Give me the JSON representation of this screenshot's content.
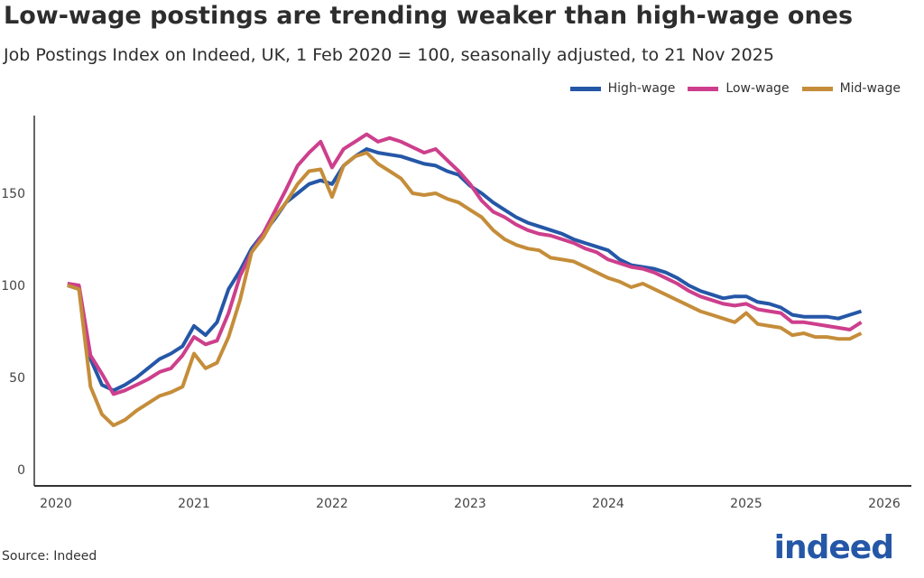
{
  "chart_data": {
    "type": "line",
    "title": "Low-wage postings are trending weaker than high-wage ones",
    "subtitle": "Job Postings Index on Indeed, UK, 1 Feb 2020 = 100, seasonally adjusted, to 21 Nov 2025",
    "xlabel": "",
    "ylabel": "",
    "xlim": [
      "2020-01",
      "2026-01"
    ],
    "ylim": [
      0,
      180
    ],
    "x_ticks": [
      "2020",
      "2021",
      "2022",
      "2023",
      "2024",
      "2025",
      "2026"
    ],
    "y_ticks": [
      "0",
      "50",
      "100",
      "150"
    ],
    "grid": false,
    "legend_position": "top-right",
    "x": [
      "2020-02",
      "2020-03",
      "2020-04",
      "2020-05",
      "2020-06",
      "2020-07",
      "2020-08",
      "2020-09",
      "2020-10",
      "2020-11",
      "2020-12",
      "2021-01",
      "2021-02",
      "2021-03",
      "2021-04",
      "2021-05",
      "2021-06",
      "2021-07",
      "2021-08",
      "2021-09",
      "2021-10",
      "2021-11",
      "2021-12",
      "2022-01",
      "2022-02",
      "2022-03",
      "2022-04",
      "2022-05",
      "2022-06",
      "2022-07",
      "2022-08",
      "2022-09",
      "2022-10",
      "2022-11",
      "2022-12",
      "2023-01",
      "2023-02",
      "2023-03",
      "2023-04",
      "2023-05",
      "2023-06",
      "2023-07",
      "2023-08",
      "2023-09",
      "2023-10",
      "2023-11",
      "2023-12",
      "2024-01",
      "2024-02",
      "2024-03",
      "2024-04",
      "2024-05",
      "2024-06",
      "2024-07",
      "2024-08",
      "2024-09",
      "2024-10",
      "2024-11",
      "2024-12",
      "2025-01",
      "2025-02",
      "2025-03",
      "2025-04",
      "2025-05",
      "2025-06",
      "2025-07",
      "2025-08",
      "2025-09",
      "2025-10",
      "2025-11"
    ],
    "series": [
      {
        "name": "High-wage",
        "color": "#2557a7",
        "values": [
          100,
          98,
          60,
          46,
          43,
          46,
          50,
          55,
          60,
          63,
          67,
          78,
          73,
          80,
          98,
          108,
          120,
          128,
          136,
          145,
          150,
          155,
          157,
          155,
          165,
          170,
          174,
          172,
          171,
          170,
          168,
          166,
          165,
          162,
          160,
          154,
          150,
          145,
          141,
          137,
          134,
          132,
          130,
          128,
          125,
          123,
          121,
          119,
          114,
          111,
          110,
          109,
          107,
          104,
          100,
          97,
          95,
          93,
          94,
          94,
          91,
          90,
          88,
          84,
          83,
          83,
          83,
          82,
          84,
          86
        ]
      },
      {
        "name": "Low-wage",
        "color": "#cd3f8c",
        "values": [
          101,
          100,
          62,
          52,
          41,
          43,
          46,
          49,
          53,
          55,
          62,
          72,
          68,
          70,
          85,
          105,
          118,
          128,
          140,
          152,
          165,
          172,
          178,
          164,
          174,
          178,
          182,
          178,
          180,
          178,
          175,
          172,
          174,
          168,
          162,
          155,
          146,
          140,
          137,
          133,
          130,
          128,
          127,
          125,
          123,
          120,
          118,
          114,
          112,
          110,
          109,
          107,
          104,
          101,
          97,
          94,
          92,
          90,
          89,
          90,
          87,
          86,
          85,
          80,
          80,
          79,
          78,
          77,
          76,
          80
        ]
      },
      {
        "name": "Mid-wage",
        "color": "#c58d3a",
        "values": [
          100,
          98,
          45,
          30,
          24,
          27,
          32,
          36,
          40,
          42,
          45,
          63,
          55,
          58,
          72,
          92,
          118,
          126,
          137,
          145,
          155,
          162,
          163,
          148,
          165,
          170,
          172,
          166,
          162,
          158,
          150,
          149,
          150,
          147,
          145,
          141,
          137,
          130,
          125,
          122,
          120,
          119,
          115,
          114,
          113,
          110,
          107,
          104,
          102,
          99,
          101,
          98,
          95,
          92,
          89,
          86,
          84,
          82,
          80,
          85,
          79,
          78,
          77,
          73,
          74,
          72,
          72,
          71,
          71,
          74
        ]
      }
    ]
  },
  "source": "Source: Indeed",
  "logo": "indeed"
}
